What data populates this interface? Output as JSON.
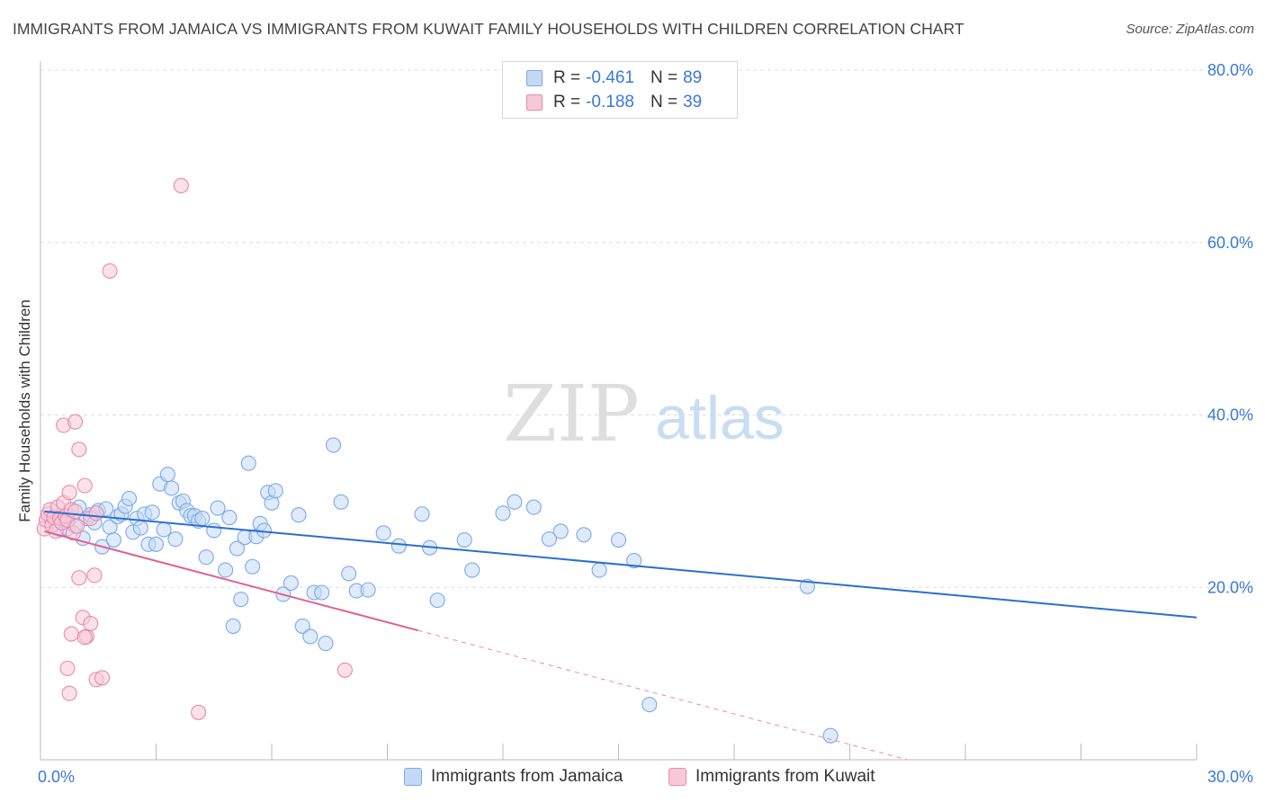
{
  "title": "IMMIGRANTS FROM JAMAICA VS IMMIGRANTS FROM KUWAIT FAMILY HOUSEHOLDS WITH CHILDREN CORRELATION CHART",
  "source": "Source: ZipAtlas.com",
  "watermark": {
    "zip": "ZIP",
    "atlas": "atlas"
  },
  "legend": {
    "r_label": "R =",
    "n_label": "N =",
    "rows": [
      {
        "r": "-0.461",
        "n": "89"
      },
      {
        "r": "-0.188",
        "n": "39"
      }
    ]
  },
  "chart_data": {
    "type": "scatter",
    "title": "IMMIGRANTS FROM JAMAICA VS IMMIGRANTS FROM KUWAIT FAMILY HOUSEHOLDS WITH CHILDREN CORRELATION CHART",
    "xlabel": "",
    "ylabel": "Family Households with Children",
    "xlim": [
      0,
      30
    ],
    "ylim": [
      0,
      80
    ],
    "x_tick_labels": [
      {
        "value": 0,
        "label": "0.0%"
      },
      {
        "value": 30,
        "label": "30.0%"
      }
    ],
    "y_tick_labels": [
      {
        "value": 20,
        "label": "20.0%"
      },
      {
        "value": 40,
        "label": "40.0%"
      },
      {
        "value": 60,
        "label": "60.0%"
      },
      {
        "value": 80,
        "label": "80.0%"
      }
    ],
    "x_minor_ticks": [
      3,
      6,
      9,
      12,
      15,
      18,
      21,
      24,
      27
    ],
    "grid": true,
    "legend_position": "top-center",
    "series": [
      {
        "name": "Immigrants from Jamaica",
        "color": "#7aaae8",
        "fill": "#c4d9f5",
        "R": -0.461,
        "N": 89,
        "trend": {
          "x": [
            0.1,
            30.0
          ],
          "y": [
            28.8,
            16.5
          ]
        },
        "points": [
          [
            0.3,
            28.1
          ],
          [
            0.4,
            27.4
          ],
          [
            0.5,
            26.7
          ],
          [
            0.6,
            27.8
          ],
          [
            0.7,
            26.8
          ],
          [
            0.8,
            28.2
          ],
          [
            0.9,
            27.1
          ],
          [
            1.0,
            29.3
          ],
          [
            1.1,
            25.7
          ],
          [
            1.2,
            28.0
          ],
          [
            1.3,
            28.4
          ],
          [
            1.4,
            27.5
          ],
          [
            1.5,
            28.9
          ],
          [
            1.6,
            24.7
          ],
          [
            1.7,
            29.1
          ],
          [
            1.8,
            27.0
          ],
          [
            1.9,
            25.5
          ],
          [
            2.0,
            28.2
          ],
          [
            2.1,
            28.5
          ],
          [
            2.2,
            29.4
          ],
          [
            2.3,
            30.3
          ],
          [
            2.4,
            26.4
          ],
          [
            2.5,
            28.0
          ],
          [
            2.6,
            26.9
          ],
          [
            2.7,
            28.5
          ],
          [
            2.8,
            25.0
          ],
          [
            2.9,
            28.7
          ],
          [
            3.0,
            25.0
          ],
          [
            3.1,
            32.0
          ],
          [
            3.2,
            26.7
          ],
          [
            3.3,
            33.1
          ],
          [
            3.4,
            31.5
          ],
          [
            3.5,
            25.6
          ],
          [
            3.6,
            29.8
          ],
          [
            3.7,
            30.0
          ],
          [
            3.8,
            28.9
          ],
          [
            3.9,
            28.3
          ],
          [
            4.0,
            28.3
          ],
          [
            4.1,
            27.7
          ],
          [
            4.2,
            28.0
          ],
          [
            4.3,
            23.5
          ],
          [
            4.5,
            26.6
          ],
          [
            4.6,
            29.2
          ],
          [
            4.8,
            22.0
          ],
          [
            4.9,
            28.1
          ],
          [
            5.0,
            15.5
          ],
          [
            5.1,
            24.5
          ],
          [
            5.2,
            18.6
          ],
          [
            5.3,
            25.8
          ],
          [
            5.4,
            34.4
          ],
          [
            5.5,
            22.4
          ],
          [
            5.6,
            25.9
          ],
          [
            5.7,
            27.4
          ],
          [
            5.8,
            26.6
          ],
          [
            5.9,
            31.0
          ],
          [
            6.0,
            29.8
          ],
          [
            6.1,
            31.2
          ],
          [
            6.3,
            19.2
          ],
          [
            6.5,
            20.5
          ],
          [
            6.7,
            28.4
          ],
          [
            6.8,
            15.5
          ],
          [
            7.0,
            14.3
          ],
          [
            7.1,
            19.4
          ],
          [
            7.3,
            19.4
          ],
          [
            7.4,
            13.5
          ],
          [
            7.6,
            36.5
          ],
          [
            7.8,
            29.9
          ],
          [
            8.0,
            21.6
          ],
          [
            8.2,
            19.6
          ],
          [
            8.5,
            19.7
          ],
          [
            8.9,
            26.3
          ],
          [
            9.3,
            24.8
          ],
          [
            9.9,
            28.5
          ],
          [
            10.1,
            24.6
          ],
          [
            10.3,
            18.5
          ],
          [
            11.0,
            25.5
          ],
          [
            11.2,
            22.0
          ],
          [
            12.0,
            28.6
          ],
          [
            12.3,
            29.9
          ],
          [
            12.8,
            29.3
          ],
          [
            13.2,
            25.6
          ],
          [
            13.5,
            26.5
          ],
          [
            14.1,
            26.1
          ],
          [
            14.5,
            22.0
          ],
          [
            15.0,
            25.5
          ],
          [
            15.4,
            23.1
          ],
          [
            15.8,
            6.4
          ],
          [
            19.9,
            20.1
          ],
          [
            20.5,
            2.8
          ]
        ]
      },
      {
        "name": "Immigrants from Kuwait",
        "color": "#e98aab",
        "fill": "#f7c8d8",
        "R": -0.188,
        "N": 39,
        "trend": {
          "x": [
            0.1,
            9.8
          ],
          "y": [
            26.5,
            15.0
          ]
        },
        "trend_dashed": {
          "x": [
            9.8,
            22.5
          ],
          "y": [
            15.0,
            0.0
          ]
        },
        "points": [
          [
            0.1,
            26.8
          ],
          [
            0.15,
            27.8
          ],
          [
            0.2,
            28.5
          ],
          [
            0.25,
            29.0
          ],
          [
            0.3,
            27.2
          ],
          [
            0.35,
            28.1
          ],
          [
            0.4,
            26.5
          ],
          [
            0.45,
            29.3
          ],
          [
            0.5,
            28.0
          ],
          [
            0.55,
            27.5
          ],
          [
            0.6,
            29.8
          ],
          [
            0.65,
            28.3
          ],
          [
            0.7,
            27.8
          ],
          [
            0.75,
            31.0
          ],
          [
            0.8,
            29.0
          ],
          [
            0.85,
            26.3
          ],
          [
            0.9,
            28.8
          ],
          [
            0.95,
            27.1
          ],
          [
            0.6,
            38.8
          ],
          [
            0.9,
            39.2
          ],
          [
            1.0,
            36.0
          ],
          [
            1.15,
            31.8
          ],
          [
            1.3,
            28.0
          ],
          [
            1.45,
            28.6
          ],
          [
            0.8,
            14.6
          ],
          [
            0.7,
            10.6
          ],
          [
            0.75,
            7.7
          ],
          [
            1.0,
            21.1
          ],
          [
            1.4,
            21.4
          ],
          [
            1.1,
            16.5
          ],
          [
            1.2,
            14.3
          ],
          [
            1.3,
            15.8
          ],
          [
            1.15,
            14.2
          ],
          [
            1.45,
            9.3
          ],
          [
            1.6,
            9.5
          ],
          [
            3.65,
            66.6
          ],
          [
            1.8,
            56.7
          ],
          [
            4.1,
            5.5
          ],
          [
            7.9,
            10.4
          ]
        ]
      }
    ]
  }
}
